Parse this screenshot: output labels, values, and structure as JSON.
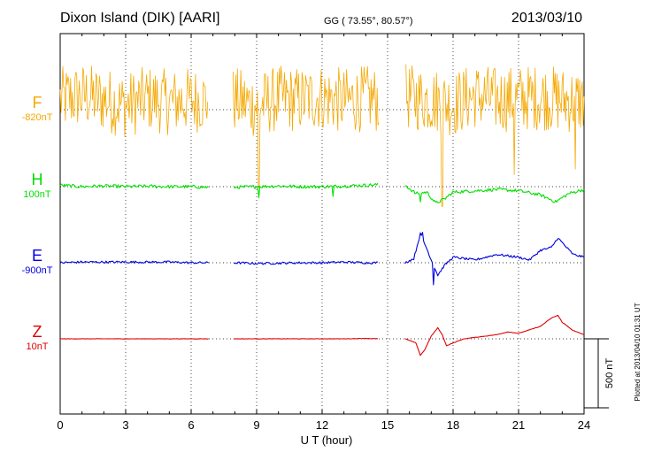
{
  "header": {
    "station": "Dixon Island (DIK)  [AARI]",
    "coords": "GG ( 73.55°,  80.57°)",
    "date": "2013/03/10"
  },
  "footer": {
    "plotted_note": "Plotted at 2013/04/10 01:31  UT",
    "scale_bar_label": "500 nT"
  },
  "chart_data": {
    "type": "line",
    "title": "Dixon Island (DIK)  [AARI]",
    "xlabel": "U T (hour)",
    "ylabel": "",
    "xlim": [
      0,
      24
    ],
    "x_ticks": [
      0,
      3,
      6,
      9,
      12,
      15,
      18,
      21,
      24
    ],
    "grid": true,
    "scale_bar_nT": 500,
    "data_gaps_hours": [
      [
        6.8,
        7.9
      ],
      [
        14.6,
        15.8
      ]
    ],
    "series": [
      {
        "name": "F",
        "baseline_label": "-820nT",
        "color": "#f5a800",
        "style": "noisy",
        "noise_amplitude_nT": 300,
        "points": [
          [
            0.0,
            0
          ],
          [
            1.0,
            30
          ],
          [
            2.0,
            0
          ],
          [
            3.0,
            -40
          ],
          [
            4.0,
            10
          ],
          [
            5.0,
            -20
          ],
          [
            6.0,
            0
          ],
          [
            6.8,
            0
          ],
          [
            7.9,
            0
          ],
          [
            9.0,
            -40
          ],
          [
            10.0,
            10
          ],
          [
            11.0,
            0
          ],
          [
            12.0,
            20
          ],
          [
            13.0,
            -10
          ],
          [
            14.0,
            10
          ],
          [
            14.6,
            0
          ],
          [
            15.8,
            20
          ],
          [
            17.0,
            0
          ],
          [
            18.0,
            -30
          ],
          [
            19.0,
            30
          ],
          [
            20.0,
            0
          ],
          [
            21.0,
            10
          ],
          [
            22.0,
            20
          ],
          [
            23.0,
            0
          ],
          [
            24.0,
            -10
          ]
        ],
        "spikes": [
          [
            6.8,
            -420
          ],
          [
            9.1,
            -560
          ],
          [
            17.5,
            -700
          ],
          [
            20.8,
            -470
          ],
          [
            23.6,
            -430
          ]
        ]
      },
      {
        "name": "H",
        "baseline_label": "100nT",
        "color": "#00e000",
        "style": "wiggly",
        "noise_amplitude_nT": 12,
        "points": [
          [
            0.0,
            10
          ],
          [
            1.0,
            0
          ],
          [
            2.0,
            5
          ],
          [
            3.0,
            0
          ],
          [
            4.0,
            3
          ],
          [
            5.0,
            0
          ],
          [
            6.0,
            0
          ],
          [
            6.8,
            -5
          ],
          [
            7.9,
            -5
          ],
          [
            9.0,
            0
          ],
          [
            10.0,
            5
          ],
          [
            11.0,
            0
          ],
          [
            12.0,
            0
          ],
          [
            13.0,
            5
          ],
          [
            14.0,
            10
          ],
          [
            14.6,
            15
          ],
          [
            15.8,
            10
          ],
          [
            16.3,
            -50
          ],
          [
            16.8,
            -40
          ],
          [
            17.2,
            -120
          ],
          [
            17.6,
            -90
          ],
          [
            18.0,
            -40
          ],
          [
            19.0,
            -30
          ],
          [
            20.0,
            -20
          ],
          [
            21.0,
            -30
          ],
          [
            22.0,
            -60
          ],
          [
            22.7,
            -110
          ],
          [
            23.3,
            -50
          ],
          [
            24.0,
            -20
          ]
        ],
        "spikes": [
          [
            9.1,
            -80
          ],
          [
            12.5,
            -70
          ],
          [
            16.5,
            -110
          ]
        ]
      },
      {
        "name": "E",
        "baseline_label": "-900nT",
        "color": "#0000dd",
        "style": "wiggly",
        "noise_amplitude_nT": 8,
        "points": [
          [
            0.0,
            0
          ],
          [
            1.0,
            5
          ],
          [
            2.0,
            5
          ],
          [
            3.0,
            5
          ],
          [
            4.0,
            5
          ],
          [
            5.0,
            5
          ],
          [
            6.0,
            0
          ],
          [
            6.8,
            0
          ],
          [
            7.9,
            0
          ],
          [
            9.0,
            -5
          ],
          [
            10.0,
            -3
          ],
          [
            11.0,
            0
          ],
          [
            12.0,
            0
          ],
          [
            13.0,
            5
          ],
          [
            14.0,
            0
          ],
          [
            14.6,
            0
          ],
          [
            15.8,
            0
          ],
          [
            16.2,
            30
          ],
          [
            16.5,
            210
          ],
          [
            16.8,
            100
          ],
          [
            17.0,
            20
          ],
          [
            17.3,
            -90
          ],
          [
            17.6,
            -20
          ],
          [
            18.0,
            40
          ],
          [
            19.0,
            20
          ],
          [
            20.0,
            60
          ],
          [
            21.0,
            40
          ],
          [
            21.5,
            20
          ],
          [
            22.0,
            90
          ],
          [
            22.5,
            110
          ],
          [
            22.8,
            180
          ],
          [
            23.2,
            110
          ],
          [
            23.5,
            60
          ],
          [
            24.0,
            40
          ]
        ],
        "spikes": [
          [
            17.1,
            -160
          ],
          [
            16.6,
            220
          ]
        ]
      },
      {
        "name": "Z",
        "baseline_label": "10nT",
        "color": "#e00000",
        "style": "smooth",
        "noise_amplitude_nT": 3,
        "points": [
          [
            0.0,
            0
          ],
          [
            1.0,
            0
          ],
          [
            2.0,
            0
          ],
          [
            3.0,
            0
          ],
          [
            4.0,
            0
          ],
          [
            5.0,
            0
          ],
          [
            6.0,
            0
          ],
          [
            6.8,
            0
          ],
          [
            7.9,
            0
          ],
          [
            9.0,
            0
          ],
          [
            10.0,
            0
          ],
          [
            11.0,
            0
          ],
          [
            12.0,
            0
          ],
          [
            13.0,
            0
          ],
          [
            14.0,
            3
          ],
          [
            14.6,
            0
          ],
          [
            15.8,
            0
          ],
          [
            16.3,
            -30
          ],
          [
            16.5,
            -120
          ],
          [
            16.7,
            -80
          ],
          [
            17.0,
            20
          ],
          [
            17.3,
            80
          ],
          [
            17.5,
            30
          ],
          [
            17.7,
            -50
          ],
          [
            18.0,
            -30
          ],
          [
            18.5,
            0
          ],
          [
            19.0,
            10
          ],
          [
            20.0,
            30
          ],
          [
            20.5,
            50
          ],
          [
            21.0,
            40
          ],
          [
            22.0,
            90
          ],
          [
            22.5,
            150
          ],
          [
            22.8,
            170
          ],
          [
            23.0,
            120
          ],
          [
            23.5,
            60
          ],
          [
            24.0,
            30
          ]
        ],
        "spikes": []
      }
    ]
  }
}
